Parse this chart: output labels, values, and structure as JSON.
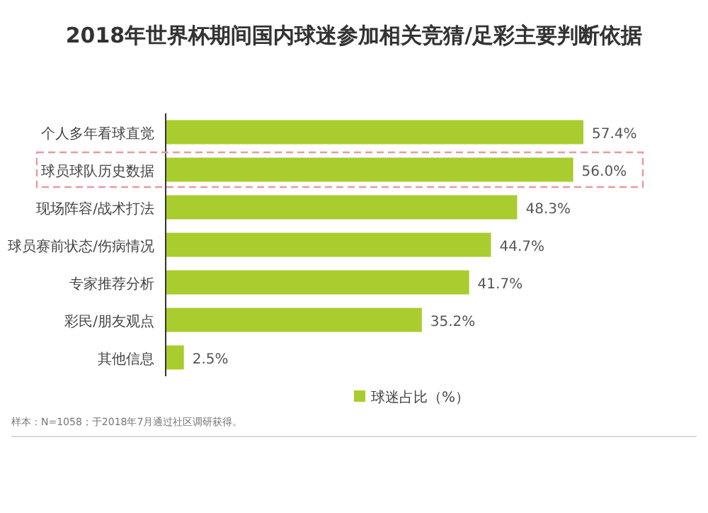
{
  "chart_data": {
    "type": "bar",
    "orientation": "horizontal",
    "title": "2018年世界杯期间国内球迷参加相关竞猜/足彩主要判断依据",
    "categories": [
      "个人多年看球直觉",
      "球员球队历史数据",
      "现场阵容/战术打法",
      "球员赛前状态/伤病情况",
      "专家推荐分析",
      "彩民/朋友观点",
      "其他信息"
    ],
    "series": [
      {
        "name": "球迷占比（%）",
        "color": "#a9cc2e",
        "values": [
          57.4,
          56.0,
          48.3,
          44.7,
          41.7,
          35.2,
          2.5
        ],
        "value_labels": [
          "57.4%",
          "56.0%",
          "48.3%",
          "44.7%",
          "41.7%",
          "35.2%",
          "2.5%"
        ]
      }
    ],
    "legend": "bottom",
    "annotations": [
      "样本：N=1058；于2018年7月通过社区调研获得。"
    ]
  }
}
